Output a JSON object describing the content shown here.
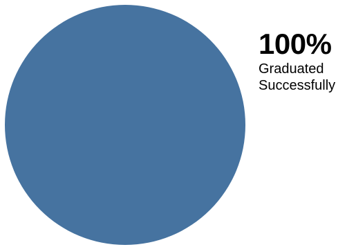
{
  "chart_data": {
    "type": "pie",
    "categories": [
      "Graduated Successfully"
    ],
    "values": [
      100
    ],
    "colors": [
      "#4673a0"
    ],
    "data_labels": [
      {
        "value_text": "100%",
        "text_lines": [
          "Graduated",
          "Successfully"
        ]
      }
    ],
    "legend": "none"
  }
}
